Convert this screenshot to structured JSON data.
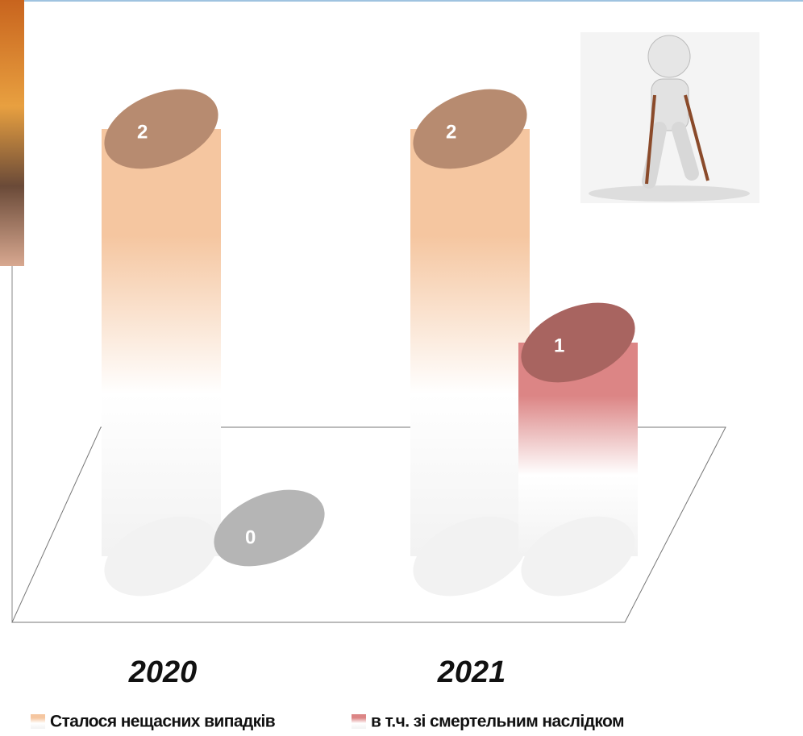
{
  "chart_data": {
    "type": "bar3d",
    "categories": [
      "2020",
      "2021"
    ],
    "series": [
      {
        "name": "Сталося нещасних випадків",
        "color": "#f5c6a0",
        "values": [
          2,
          2
        ]
      },
      {
        "name": "в т.ч. зі смертельним наслідком",
        "color": "#dc8585",
        "values": [
          0,
          1
        ]
      }
    ]
  }
}
